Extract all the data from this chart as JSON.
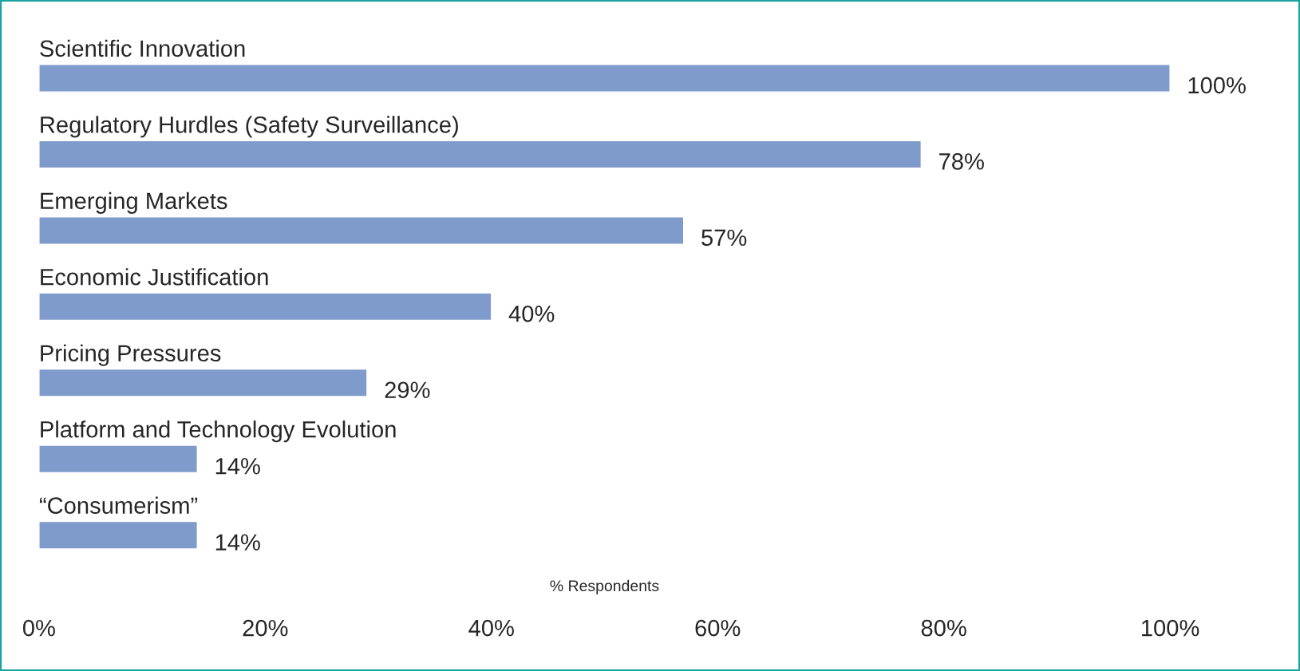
{
  "chart_data": {
    "type": "bar",
    "orientation": "horizontal",
    "xlabel": "% Respondents",
    "categories": [
      "Scientific Innovation",
      "Regulatory Hurdles (Safety Surveillance)",
      "Emerging Markets",
      "Economic Justification",
      "Pricing Pressures",
      "Platform and Technology Evolution",
      "“Consumerism”"
    ],
    "values": [
      100,
      78,
      57,
      40,
      29,
      14,
      14
    ],
    "value_labels": [
      "100%",
      "78%",
      "57%",
      "40%",
      "29%",
      "14%",
      "14%"
    ],
    "color": "#7f9bcc",
    "xlim": [
      0,
      100
    ],
    "xticks": [
      {
        "value": 0,
        "label": "0%"
      },
      {
        "value": 20,
        "label": "20%"
      },
      {
        "value": 40,
        "label": "40%"
      },
      {
        "value": 60,
        "label": "60%"
      },
      {
        "value": 80,
        "label": "80%"
      },
      {
        "value": 100,
        "label": "100%"
      }
    ],
    "grid": false,
    "legend": false
  }
}
